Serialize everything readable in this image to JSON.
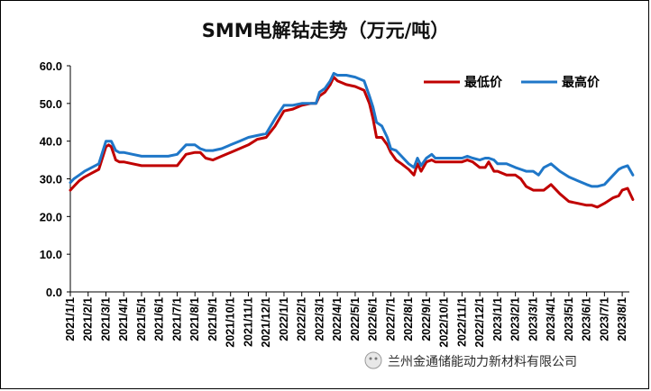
{
  "chart_data": {
    "type": "line",
    "title": "SMM电解钴走势（万元/吨）",
    "ylim": [
      0,
      60
    ],
    "yticks": [
      "0.0",
      "10.0",
      "20.0",
      "30.0",
      "40.0",
      "50.0",
      "60.0"
    ],
    "categories": [
      "2021/1/1",
      "2021/2/1",
      "2021/3/1",
      "2021/4/1",
      "2021/5/1",
      "2021/6/1",
      "2021/7/1",
      "2021/8/1",
      "2021/9/1",
      "2021/10/1",
      "2021/11/1",
      "2021/12/1",
      "2022/1/1",
      "2022/2/1",
      "2022/3/1",
      "2022/4/1",
      "2022/5/1",
      "2022/6/1",
      "2022/7/1",
      "2022/8/1",
      "2022/9/1",
      "2022/10/1",
      "2022/11/1",
      "2022/12/1",
      "2023/1/1",
      "2023/2/1",
      "2023/3/1",
      "2023/4/1",
      "2023/5/1",
      "2023/6/1",
      "2023/7/1",
      "2023/8/1"
    ],
    "series": [
      {
        "name": "最低价",
        "color": "#c00000",
        "x": [
          0,
          0.2,
          0.5,
          0.8,
          1.2,
          1.6,
          2.0,
          2.15,
          2.3,
          2.55,
          2.75,
          3.0,
          3.5,
          4.0,
          4.5,
          5.0,
          5.5,
          6.0,
          6.5,
          7.0,
          7.3,
          7.6,
          8.0,
          8.5,
          9.0,
          9.5,
          10.0,
          10.5,
          11.0,
          11.5,
          12.0,
          12.5,
          13.0,
          13.5,
          13.8,
          14.0,
          14.3,
          14.6,
          14.8,
          15.0,
          15.5,
          16.0,
          16.5,
          16.8,
          17.0,
          17.2,
          17.5,
          17.8,
          18.0,
          18.3,
          18.6,
          19.0,
          19.3,
          19.5,
          19.7,
          20.0,
          20.3,
          20.5,
          21.0,
          21.5,
          22.0,
          22.3,
          22.6,
          23.0,
          23.3,
          23.5,
          23.8,
          24.0,
          24.5,
          25.0,
          25.3,
          25.6,
          25.8,
          26.0,
          26.3,
          26.6,
          27.0,
          27.5,
          28.0,
          28.5,
          29.0,
          29.3,
          29.6,
          30.0,
          30.5,
          30.8,
          31.0,
          31.3,
          31.6
        ],
        "values": [
          27,
          28,
          29.5,
          30.5,
          31.5,
          32.5,
          38.5,
          39,
          38.5,
          35,
          34.5,
          34.5,
          34,
          33.5,
          33.5,
          33.5,
          33.5,
          33.5,
          36.5,
          37,
          37,
          35.5,
          35,
          36,
          37,
          38,
          39,
          40.5,
          41,
          44,
          48,
          48.5,
          49.5,
          50,
          50,
          52,
          53,
          55,
          57,
          56,
          55,
          54.5,
          53.5,
          50,
          46,
          41,
          41,
          39,
          37,
          35,
          34,
          32.5,
          31,
          34,
          32,
          34.5,
          35,
          34.5,
          34.5,
          34.5,
          34.5,
          35,
          34.5,
          33,
          33,
          34.5,
          32,
          32,
          31,
          31,
          30,
          28,
          27.5,
          27,
          27,
          27,
          28.5,
          26,
          24,
          23.5,
          23,
          23,
          22.5,
          23.5,
          25,
          25.5,
          27,
          27.5,
          24.5
        ]
      },
      {
        "name": "最高价",
        "color": "#1f77c8",
        "x": [
          0,
          0.2,
          0.5,
          0.8,
          1.2,
          1.6,
          2.0,
          2.15,
          2.3,
          2.55,
          2.75,
          3.0,
          3.5,
          4.0,
          4.5,
          5.0,
          5.5,
          6.0,
          6.5,
          7.0,
          7.3,
          7.6,
          8.0,
          8.5,
          9.0,
          9.5,
          10.0,
          10.5,
          11.0,
          11.5,
          12.0,
          12.5,
          13.0,
          13.5,
          13.8,
          14.0,
          14.3,
          14.6,
          14.8,
          15.0,
          15.5,
          16.0,
          16.5,
          16.8,
          17.0,
          17.2,
          17.5,
          17.8,
          18.0,
          18.3,
          18.6,
          19.0,
          19.3,
          19.5,
          19.7,
          20.0,
          20.3,
          20.5,
          21.0,
          21.5,
          22.0,
          22.3,
          22.6,
          23.0,
          23.3,
          23.5,
          23.8,
          24.0,
          24.5,
          25.0,
          25.3,
          25.6,
          25.8,
          26.0,
          26.3,
          26.6,
          27.0,
          27.5,
          28.0,
          28.5,
          29.0,
          29.3,
          29.6,
          30.0,
          30.5,
          30.8,
          31.0,
          31.3,
          31.6
        ],
        "values": [
          29,
          30,
          31,
          32,
          33,
          34,
          40,
          40,
          40,
          37.5,
          37,
          37,
          36.5,
          36,
          36,
          36,
          36,
          36.5,
          39,
          39,
          38,
          37.5,
          37.5,
          38,
          39,
          40,
          41,
          41.5,
          42,
          46,
          49.5,
          49.5,
          50,
          50,
          50,
          53,
          54,
          56,
          58,
          57.5,
          57.5,
          57,
          56,
          52,
          49,
          45,
          44,
          41,
          38,
          37.5,
          36,
          34,
          33,
          35.5,
          33.5,
          35.5,
          36.5,
          35.5,
          35.5,
          35.5,
          35.5,
          36,
          35.5,
          35,
          35.5,
          35.5,
          35,
          34,
          34,
          33,
          32.5,
          32,
          32,
          32,
          31,
          33,
          34,
          32,
          30.5,
          29.5,
          28.5,
          28,
          28,
          28.5,
          31,
          32.5,
          33,
          33.5,
          31
        ]
      }
    ],
    "legend": [
      "最低价",
      "最高价"
    ],
    "legend_position": "top-right",
    "watermark": "兰州金通储能动力新材料有限公司"
  }
}
